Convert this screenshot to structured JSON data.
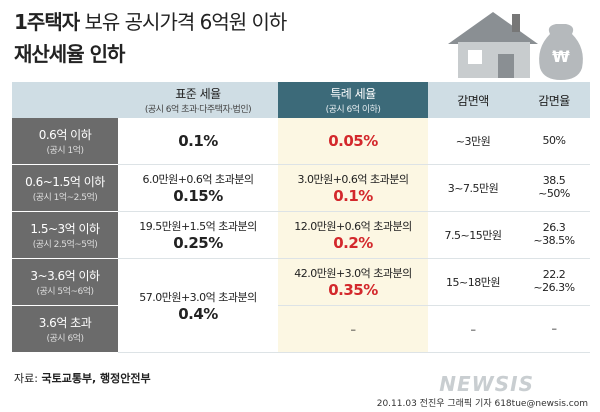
{
  "header": {
    "title_bold": "1주택자",
    "title_rest": "보유 공시가격 6억원 이하",
    "subtitle": "재산세율 인하"
  },
  "table": {
    "columns": [
      {
        "label": "표준 세율",
        "note": "(공시 6억 초과·다주택자·법인)"
      },
      {
        "label": "특례 세율",
        "note": "(공시 6억 이하)"
      },
      {
        "label": "감면액"
      },
      {
        "label": "감면율"
      }
    ],
    "rows": [
      {
        "bracket": "0.6억 이하",
        "note": "(공시 1억)",
        "standard": {
          "rate": "0.1%"
        },
        "special": {
          "rate": "0.05%"
        },
        "reduction": "~3만원",
        "ratio": "50%"
      },
      {
        "bracket": "0.6~1.5억 이하",
        "note": "(공시 1억~2.5억)",
        "standard": {
          "base": "6.0만원+0.6억 초과분의",
          "rate": "0.15%"
        },
        "special": {
          "base": "3.0만원+0.6억 초과분의",
          "rate": "0.1%"
        },
        "reduction": "3~7.5만원",
        "ratio": "38.5\n~50%"
      },
      {
        "bracket": "1.5~3억 이하",
        "note": "(공시 2.5억~5억)",
        "standard": {
          "base": "19.5만원+1.5억 초과분의",
          "rate": "0.25%"
        },
        "special": {
          "base": "12.0만원+0.6억 초과분의",
          "rate": "0.2%"
        },
        "reduction": "7.5~15만원",
        "ratio": "26.3\n~38.5%"
      },
      {
        "bracket": "3~3.6억 이하",
        "note": "(공시 5억~6억)",
        "standard": {
          "base": "57.0만원+3.0억 초과분의",
          "rate": "0.4%"
        },
        "special": {
          "base": "42.0만원+3.0억 초과분의",
          "rate": "0.35%"
        },
        "reduction": "15~18만원",
        "ratio": "22.2\n~26.3%"
      },
      {
        "bracket": "3.6억 초과",
        "note": "(공시 6억)",
        "special": {
          "rate": "–"
        },
        "reduction": "–",
        "ratio": "–"
      }
    ]
  },
  "footer": {
    "source_label": "자료:",
    "source": "국토교통부, 행정안전부",
    "credit": "20.11.03 전진우 그래픽 기자 618tue@newsis.com",
    "logo": "NEWSIS"
  }
}
